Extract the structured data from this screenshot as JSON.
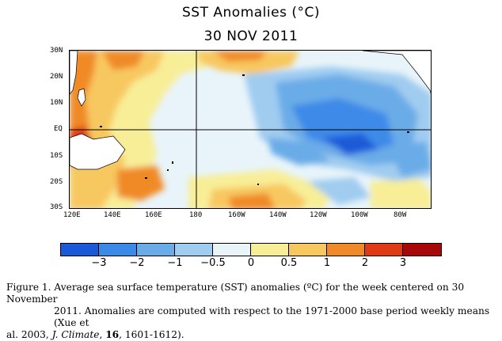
{
  "title": {
    "line1": "SST Anomalies (°C)",
    "line2": "30 NOV 2011"
  },
  "map": {
    "lat_labels": [
      "30N",
      "20N",
      "10N",
      "EQ",
      "10S",
      "20S",
      "30S"
    ],
    "lon_labels": [
      "120E",
      "140E",
      "160E",
      "180",
      "160W",
      "140W",
      "120W",
      "100W",
      "80W"
    ]
  },
  "colorbar": {
    "colors": [
      "#1a5ad8",
      "#3c8ae8",
      "#6aace8",
      "#a0ccf0",
      "#e8f4fa",
      "#f8ee98",
      "#f8c860",
      "#f08a28",
      "#e03a14",
      "#a80808"
    ],
    "labels": [
      "−3",
      "−2",
      "−1",
      "−0.5",
      "0",
      "0.5",
      "1",
      "2",
      "3"
    ]
  },
  "caption": {
    "prefix": "Figure 1. Average sea surface temperature (SST) anomalies (ºC) for the week centered on 30 November",
    "line2": "2011.    Anomalies are computed with respect to the 1971-2000  base period weekly means (Xue et",
    "line3_a": "al. 2003, ",
    "line3_journal": "J. Climate",
    "line3_b": ", ",
    "line3_volume": "16",
    "line3_c": ", 1601-1612)."
  }
}
